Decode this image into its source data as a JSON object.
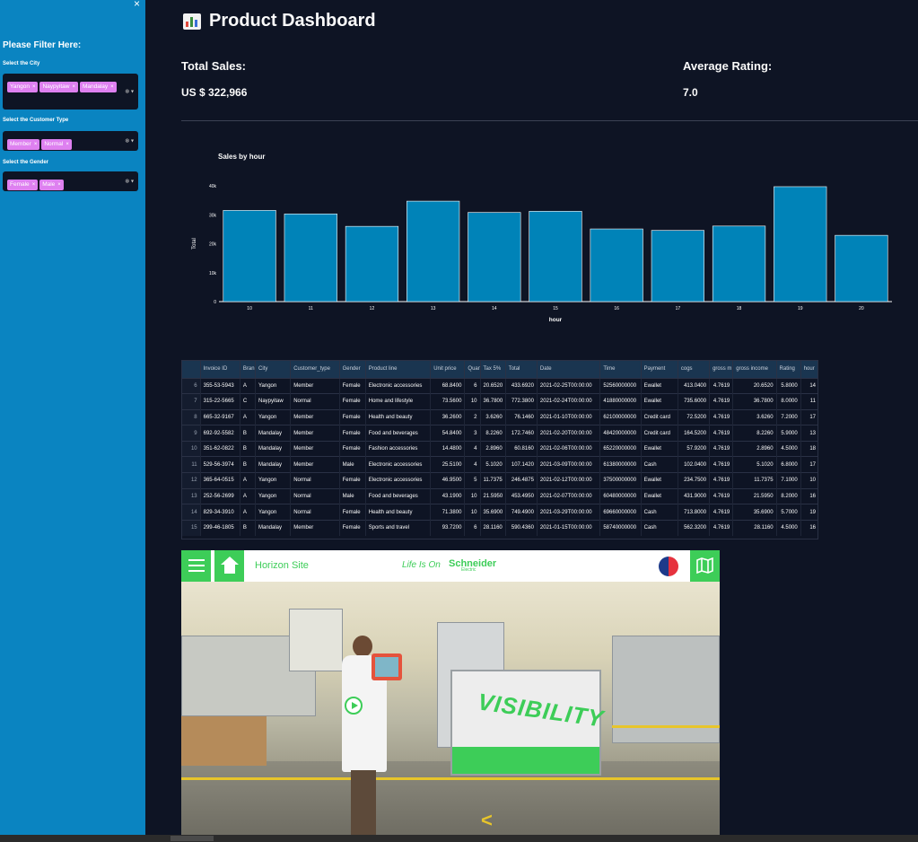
{
  "sidebar": {
    "close": "×",
    "title": "Please Filter Here:",
    "filters": [
      {
        "label": "Select the City",
        "tags": [
          "Yangon",
          "Naypyitaw",
          "Mandalay"
        ]
      },
      {
        "label": "Select the Customer Type",
        "tags": [
          "Member",
          "Normal"
        ]
      },
      {
        "label": "Select the Gender",
        "tags": [
          "Female",
          "Male"
        ]
      }
    ]
  },
  "header": {
    "title": "Product Dashboard"
  },
  "metrics": {
    "total_sales_label": "Total Sales:",
    "total_sales_value": "US $ 322,966",
    "avg_rating_label": "Average Rating:",
    "avg_rating_value": "7.0"
  },
  "chart_data": {
    "type": "bar",
    "title": "Sales by hour",
    "xlabel": "hour",
    "ylabel": "Total",
    "categories": [
      "10",
      "11",
      "12",
      "13",
      "14",
      "15",
      "16",
      "17",
      "18",
      "19",
      "20"
    ],
    "values": [
      31500,
      30300,
      26000,
      34700,
      30800,
      31200,
      25100,
      24600,
      26100,
      39700,
      22900
    ],
    "ylim": [
      0,
      40000
    ],
    "yticks": [
      "0",
      "10k",
      "20k",
      "30k",
      "40k"
    ],
    "color": "#0083b8",
    "grid": false
  },
  "table": {
    "columns": [
      "",
      "Invoice ID",
      "Bran",
      "City",
      "Customer_type",
      "Gender",
      "Product line",
      "Unit price",
      "Quan",
      "Tax 5%",
      "Total",
      "Date",
      "Time",
      "Payment",
      "cogs",
      "gross m",
      "gross income",
      "Rating",
      "hour"
    ],
    "rows": [
      [
        "6",
        "355-53-5943",
        "A",
        "Yangon",
        "Member",
        "Female",
        "Electronic accessories",
        "68.8400",
        "6",
        "20.6520",
        "433.6920",
        "2021-02-25T00:00:00",
        "52560000000",
        "Ewallet",
        "413.0400",
        "4.7619",
        "20.6520",
        "5.8000",
        "14"
      ],
      [
        "7",
        "315-22-5665",
        "C",
        "Naypyitaw",
        "Normal",
        "Female",
        "Home and lifestyle",
        "73.5600",
        "10",
        "36.7800",
        "772.3800",
        "2021-02-24T00:00:00",
        "41880000000",
        "Ewallet",
        "735.6000",
        "4.7619",
        "36.7800",
        "8.0000",
        "11"
      ],
      [
        "8",
        "665-32-9167",
        "A",
        "Yangon",
        "Member",
        "Female",
        "Health and beauty",
        "36.2600",
        "2",
        "3.6260",
        "76.1460",
        "2021-01-10T00:00:00",
        "62100000000",
        "Credit card",
        "72.5200",
        "4.7619",
        "3.6260",
        "7.2000",
        "17"
      ],
      [
        "9",
        "692-92-5582",
        "B",
        "Mandalay",
        "Member",
        "Female",
        "Food and beverages",
        "54.8400",
        "3",
        "8.2260",
        "172.7460",
        "2021-02-20T00:00:00",
        "48420000000",
        "Credit card",
        "164.5200",
        "4.7619",
        "8.2260",
        "5.9000",
        "13"
      ],
      [
        "10",
        "351-62-0822",
        "B",
        "Mandalay",
        "Member",
        "Female",
        "Fashion accessories",
        "14.4800",
        "4",
        "2.8960",
        "60.8160",
        "2021-02-06T00:00:00",
        "65220000000",
        "Ewallet",
        "57.9200",
        "4.7619",
        "2.8960",
        "4.5000",
        "18"
      ],
      [
        "11",
        "529-56-3974",
        "B",
        "Mandalay",
        "Member",
        "Male",
        "Electronic accessories",
        "25.5100",
        "4",
        "5.1020",
        "107.1420",
        "2021-03-09T00:00:00",
        "61380000000",
        "Cash",
        "102.0400",
        "4.7619",
        "5.1020",
        "6.8000",
        "17"
      ],
      [
        "12",
        "365-64-0515",
        "A",
        "Yangon",
        "Normal",
        "Female",
        "Electronic accessories",
        "46.9500",
        "5",
        "11.7375",
        "246.4875",
        "2021-02-12T00:00:00",
        "37500000000",
        "Ewallet",
        "234.7500",
        "4.7619",
        "11.7375",
        "7.1000",
        "10"
      ],
      [
        "13",
        "252-56-2699",
        "A",
        "Yangon",
        "Normal",
        "Male",
        "Food and beverages",
        "43.1900",
        "10",
        "21.5950",
        "453.4950",
        "2021-02-07T00:00:00",
        "60480000000",
        "Ewallet",
        "431.9000",
        "4.7619",
        "21.5950",
        "8.2000",
        "16"
      ],
      [
        "14",
        "829-34-3910",
        "A",
        "Yangon",
        "Normal",
        "Female",
        "Health and beauty",
        "71.3800",
        "10",
        "35.6900",
        "749.4900",
        "2021-03-29T00:00:00",
        "69660000000",
        "Cash",
        "713.8000",
        "4.7619",
        "35.6900",
        "5.7000",
        "19"
      ],
      [
        "15",
        "299-46-1805",
        "B",
        "Mandalay",
        "Member",
        "Female",
        "Sports and travel",
        "93.7200",
        "6",
        "28.1160",
        "590.4360",
        "2021-01-15T00:00:00",
        "58740000000",
        "Cash",
        "562.3200",
        "4.7619",
        "28.1160",
        "4.5000",
        "16"
      ]
    ]
  },
  "embed": {
    "site_name": "Horizon Site",
    "tagline": "Life Is On",
    "brand": "Schneider",
    "brand_sub": "Electric",
    "scene_text": "VISIBILITY",
    "nav_arrow": "<"
  }
}
